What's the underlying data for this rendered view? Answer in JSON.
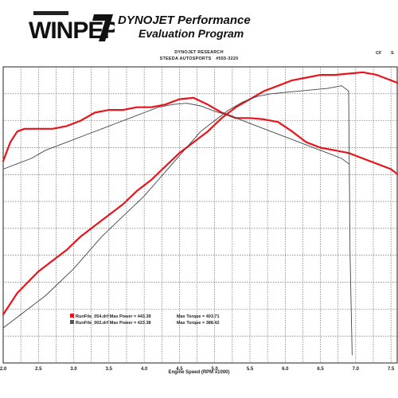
{
  "header": {
    "logo_text": "WINPEP7",
    "brand_line1": "DYNOJET Performance",
    "brand_line2": "Evaluation Program",
    "company": "DYNOJET RESEARCH",
    "shop": "STEEDA AUTOSPORTS",
    "phone": "#555-3220",
    "corner_left": "CF",
    "corner_right": "S"
  },
  "colors": {
    "run1": "#e8141c",
    "run2": "#333333",
    "grid": "#555555"
  },
  "chart_data": {
    "type": "line",
    "xlabel": "Engine Speed (RPM x1000)",
    "x_ticks": [
      2.0,
      2.5,
      3.0,
      3.5,
      4.0,
      4.5,
      5.0,
      5.5,
      6.0,
      6.5,
      7.0,
      7.5
    ],
    "xlim": [
      2.0,
      7.6
    ],
    "ylim": [
      0,
      11
    ],
    "y_ticks_shown": false,
    "legend": [
      {
        "text": "RunFile_054.drf Max Power = 443.39",
        "torque": "Max Torque = 403.71",
        "color": "#e8141c"
      },
      {
        "text": "RunFile_002.drf Max Power = 423.38",
        "torque": "Max Torque = 388.42",
        "color": "#555555"
      }
    ],
    "series": [
      {
        "color": "#e8141c",
        "width": 2.2,
        "x": [
          2.0,
          2.1,
          2.2,
          2.35,
          2.5,
          2.7,
          2.9,
          3.1,
          3.3,
          3.5,
          3.7,
          3.9,
          4.1,
          4.3,
          4.5,
          4.7,
          4.9,
          5.1,
          5.3,
          5.5,
          5.7,
          5.9,
          6.1,
          6.3,
          6.5,
          6.7,
          6.9,
          7.1,
          7.3,
          7.5,
          7.6
        ],
        "y": [
          1.8,
          2.2,
          2.6,
          3.0,
          3.4,
          3.8,
          4.2,
          4.7,
          5.1,
          5.5,
          5.9,
          6.4,
          6.8,
          7.3,
          7.8,
          8.2,
          8.6,
          9.1,
          9.5,
          9.8,
          10.1,
          10.3,
          10.5,
          10.6,
          10.7,
          10.7,
          10.75,
          10.8,
          10.7,
          10.5,
          10.4
        ]
      },
      {
        "color": "#e8141c",
        "width": 2.2,
        "x": [
          2.0,
          2.1,
          2.2,
          2.3,
          2.5,
          2.7,
          2.9,
          3.1,
          3.3,
          3.5,
          3.7,
          3.9,
          4.1,
          4.3,
          4.5,
          4.7,
          4.9,
          5.1,
          5.3,
          5.5,
          5.7,
          5.9,
          6.1,
          6.3,
          6.5,
          6.7,
          6.9,
          7.1,
          7.3,
          7.5,
          7.6
        ],
        "y": [
          7.5,
          8.2,
          8.6,
          8.7,
          8.7,
          8.7,
          8.8,
          9.0,
          9.3,
          9.4,
          9.4,
          9.5,
          9.5,
          9.6,
          9.8,
          9.85,
          9.6,
          9.3,
          9.1,
          9.1,
          9.05,
          8.95,
          8.6,
          8.2,
          8.0,
          7.9,
          7.8,
          7.6,
          7.4,
          7.2,
          7.0
        ]
      },
      {
        "color": "#444444",
        "width": 0.9,
        "x": [
          2.0,
          2.2,
          2.4,
          2.6,
          2.8,
          3.0,
          3.2,
          3.4,
          3.6,
          3.8,
          4.0,
          4.2,
          4.4,
          4.6,
          4.8,
          5.0,
          5.2,
          5.4,
          5.6,
          5.8,
          6.0,
          6.2,
          6.4,
          6.6,
          6.8,
          6.9,
          6.92,
          6.95
        ],
        "y": [
          1.3,
          1.7,
          2.1,
          2.5,
          3.0,
          3.5,
          4.1,
          4.7,
          5.2,
          5.7,
          6.2,
          6.8,
          7.4,
          8.0,
          8.6,
          9.0,
          9.4,
          9.7,
          9.9,
          10.0,
          10.05,
          10.1,
          10.15,
          10.2,
          10.3,
          10.1,
          4.0,
          0.3
        ]
      },
      {
        "color": "#444444",
        "width": 0.9,
        "x": [
          2.0,
          2.2,
          2.4,
          2.6,
          2.8,
          3.0,
          3.2,
          3.4,
          3.6,
          3.8,
          4.0,
          4.2,
          4.4,
          4.6,
          4.8,
          5.0,
          5.2,
          5.4,
          5.6,
          5.8,
          6.0,
          6.2,
          6.4,
          6.6,
          6.8,
          6.9
        ],
        "y": [
          7.2,
          7.4,
          7.6,
          7.9,
          8.1,
          8.3,
          8.5,
          8.7,
          8.9,
          9.1,
          9.3,
          9.5,
          9.6,
          9.65,
          9.55,
          9.35,
          9.2,
          9.0,
          8.8,
          8.6,
          8.4,
          8.2,
          8.0,
          7.8,
          7.6,
          7.4
        ]
      }
    ]
  }
}
